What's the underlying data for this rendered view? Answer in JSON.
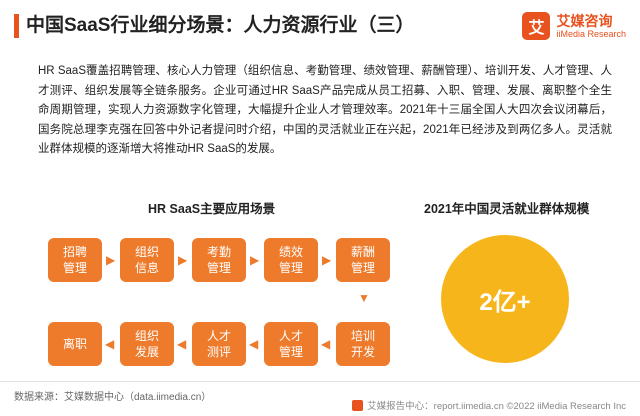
{
  "header": {
    "title": "中国SaaS行业细分场景：人力资源行业（三）",
    "logo": {
      "mark": "艾",
      "cn": "艾媒咨询",
      "en": "iiMedia Research"
    }
  },
  "body": {
    "paragraph": "HR SaaS覆盖招聘管理、核心人力管理（组织信息、考勤管理、绩效管理、薪酬管理）、培训开发、人才管理、人才测评、组织发展等全链条服务。企业可通过HR SaaS产品完成从员工招募、入职、管理、发展、离职整个全生命周期管理，实现人力资源数字化管理，大幅提升企业人才管理效率。2021年十三届全国人大四次会议闭幕后，国务院总理李克强在回答中外记者提问时介绍，中国的灵活就业正在兴起，2021年已经涉及到两亿多人。灵活就业群体规模的逐渐增大将推动HR SaaS的发展。"
  },
  "flow": {
    "title": "HR SaaS主要应用场景",
    "steps": [
      "招聘\n管理",
      "组织\n信息",
      "考勤\n管理",
      "绩效\n管理",
      "薪酬\n管理",
      "培训\n开发",
      "人才\n管理",
      "人才\n测评",
      "组织\n发展",
      "离职"
    ]
  },
  "scale": {
    "title": "2021年中国灵活就业群体规模",
    "value": "2亿+"
  },
  "footer": {
    "source": "数据来源：艾媒数据中心（data.iimedia.cn）",
    "copyright": "艾媒报告中心：report.iimedia.cn  ©2022 iiMedia Research Inc"
  },
  "colors": {
    "accent": "#e8521f",
    "step": "#ee7a2b",
    "circle": "#f7b51c"
  }
}
